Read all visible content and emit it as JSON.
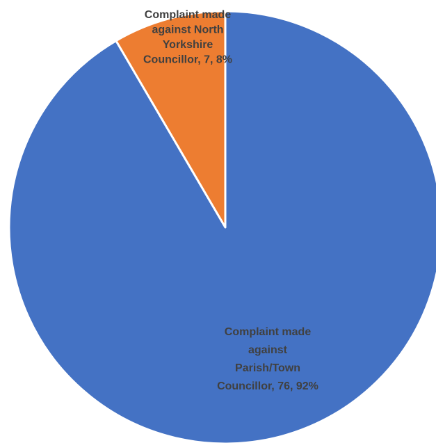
{
  "chart_data": {
    "type": "pie",
    "title": "",
    "slices": [
      {
        "category": "Complaint made against North Yorkshire Councillor",
        "value": 7,
        "percent": 8,
        "color": "#ED7D31",
        "label_lines": [
          "Complaint made",
          "against North",
          "Yorkshire",
          "Councillor, 7, 8%"
        ]
      },
      {
        "category": "Complaint made against Parish/Town Councillor",
        "value": 76,
        "percent": 92,
        "color": "#4472C4",
        "label_lines": [
          "Complaint made",
          "against",
          "Parish/Town",
          "Councillor, 76, 92%"
        ]
      }
    ],
    "start_angle_deg": 0,
    "direction": "counterclockwise",
    "separator_color": "#ffffff"
  }
}
